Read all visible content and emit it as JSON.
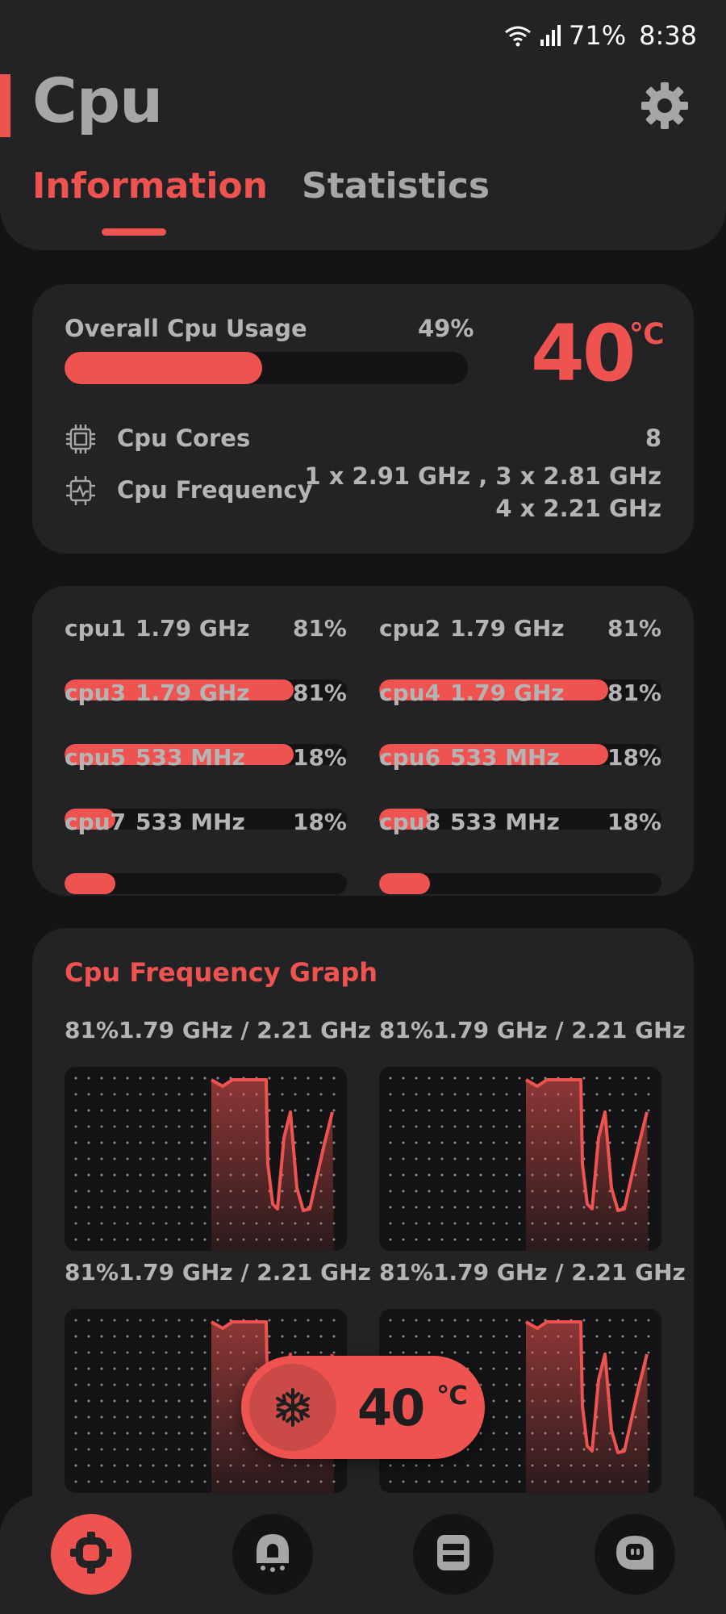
{
  "status_bar": {
    "battery": "71%",
    "time": "8:38"
  },
  "header": {
    "title": "Cpu",
    "tabs": [
      {
        "label": "Information",
        "active": true
      },
      {
        "label": "Statistics",
        "active": false
      }
    ]
  },
  "overview": {
    "usage_label": "Overall Cpu Usage",
    "usage_percent": "49%",
    "usage_fraction": 0.49,
    "temperature": "40",
    "temperature_unit": "℃",
    "cores_label": "Cpu Cores",
    "cores_value": "8",
    "frequency_label": "Cpu Frequency",
    "frequency_line1": "1 x 2.91 GHz , 3 x 2.81 GHz",
    "frequency_line2": "4 x 2.21 GHz"
  },
  "cores": [
    {
      "name": "cpu1",
      "freq": "1.79 GHz",
      "percent": "81%",
      "fraction": 0.81
    },
    {
      "name": "cpu2",
      "freq": "1.79 GHz",
      "percent": "81%",
      "fraction": 0.81
    },
    {
      "name": "cpu3",
      "freq": "1.79 GHz",
      "percent": "81%",
      "fraction": 0.81
    },
    {
      "name": "cpu4",
      "freq": "1.79 GHz",
      "percent": "81%",
      "fraction": 0.81
    },
    {
      "name": "cpu5",
      "freq": "533 MHz",
      "percent": "18%",
      "fraction": 0.18
    },
    {
      "name": "cpu6",
      "freq": "533 MHz",
      "percent": "18%",
      "fraction": 0.18
    },
    {
      "name": "cpu7",
      "freq": "533 MHz",
      "percent": "18%",
      "fraction": 0.18
    },
    {
      "name": "cpu8",
      "freq": "533 MHz",
      "percent": "18%",
      "fraction": 0.18
    }
  ],
  "frequency_graph": {
    "title": "Cpu Frequency Graph",
    "graphs": [
      {
        "label": "81%1.79 GHz / 2.21 GHz"
      },
      {
        "label": "81%1.79 GHz / 2.21 GHz"
      },
      {
        "label": "81%1.79 GHz / 2.21 GHz"
      },
      {
        "label": "81%1.79 GHz / 2.21 GHz"
      }
    ]
  },
  "floating_temp": {
    "value": "40",
    "unit": "℃",
    "icon": "snowflake-icon"
  },
  "bottom_nav": [
    {
      "icon": "cpu-chip-icon",
      "active": true
    },
    {
      "icon": "ghost-icon",
      "active": false
    },
    {
      "icon": "storage-icon",
      "active": false
    },
    {
      "icon": "chat-bot-icon",
      "active": false
    }
  ],
  "colors": {
    "accent": "#ef5350",
    "background": "#141416",
    "card": "#232326",
    "text": "#b4b4b4"
  }
}
